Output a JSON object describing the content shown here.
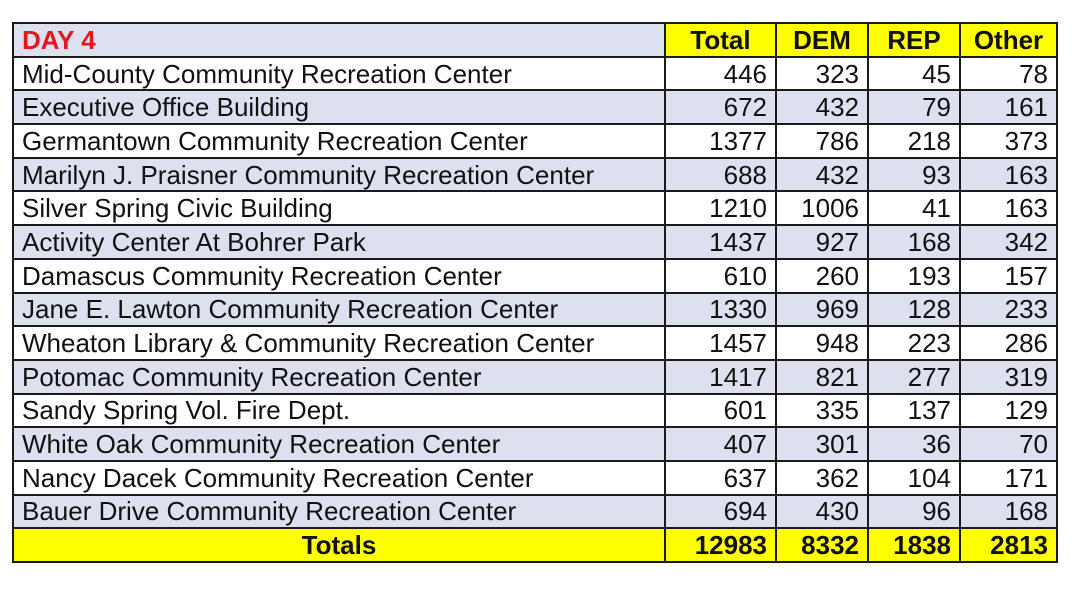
{
  "header": {
    "day_label": "DAY 4",
    "columns": [
      "Total",
      "DEM",
      "REP",
      "Other"
    ]
  },
  "rows": [
    {
      "name": "Mid-County Community Recreation Center",
      "total": "446",
      "dem": "323",
      "rep": "45",
      "other": "78"
    },
    {
      "name": "Executive Office Building",
      "total": "672",
      "dem": "432",
      "rep": "79",
      "other": "161"
    },
    {
      "name": "Germantown Community Recreation Center",
      "total": "1377",
      "dem": "786",
      "rep": "218",
      "other": "373"
    },
    {
      "name": "Marilyn J. Praisner Community Recreation Center",
      "total": "688",
      "dem": "432",
      "rep": "93",
      "other": "163"
    },
    {
      "name": "Silver Spring Civic Building",
      "total": "1210",
      "dem": "1006",
      "rep": "41",
      "other": "163"
    },
    {
      "name": "Activity Center At Bohrer Park",
      "total": "1437",
      "dem": "927",
      "rep": "168",
      "other": "342"
    },
    {
      "name": "Damascus Community Recreation Center",
      "total": "610",
      "dem": "260",
      "rep": "193",
      "other": "157"
    },
    {
      "name": "Jane E. Lawton Community Recreation Center",
      "total": "1330",
      "dem": "969",
      "rep": "128",
      "other": "233"
    },
    {
      "name": "Wheaton Library & Community Recreation Center",
      "total": "1457",
      "dem": "948",
      "rep": "223",
      "other": "286"
    },
    {
      "name": "Potomac Community Recreation Center",
      "total": "1417",
      "dem": "821",
      "rep": "277",
      "other": "319"
    },
    {
      "name": "Sandy Spring Vol. Fire Dept.",
      "total": "601",
      "dem": "335",
      "rep": "137",
      "other": "129"
    },
    {
      "name": "White Oak Community Recreation Center",
      "total": "407",
      "dem": "301",
      "rep": "36",
      "other": "70"
    },
    {
      "name": "Nancy Dacek Community Recreation Center",
      "total": "637",
      "dem": "362",
      "rep": "104",
      "other": "171"
    },
    {
      "name": "Bauer Drive Community Recreation Center",
      "total": "694",
      "dem": "430",
      "rep": "96",
      "other": "168"
    }
  ],
  "totals": {
    "label": "Totals",
    "total": "12983",
    "dem": "8332",
    "rep": "1838",
    "other": "2813"
  },
  "colors": {
    "header_yellow": "#ffff00",
    "row_stripe": "#dde1ef",
    "day_red": "#e8151b"
  }
}
